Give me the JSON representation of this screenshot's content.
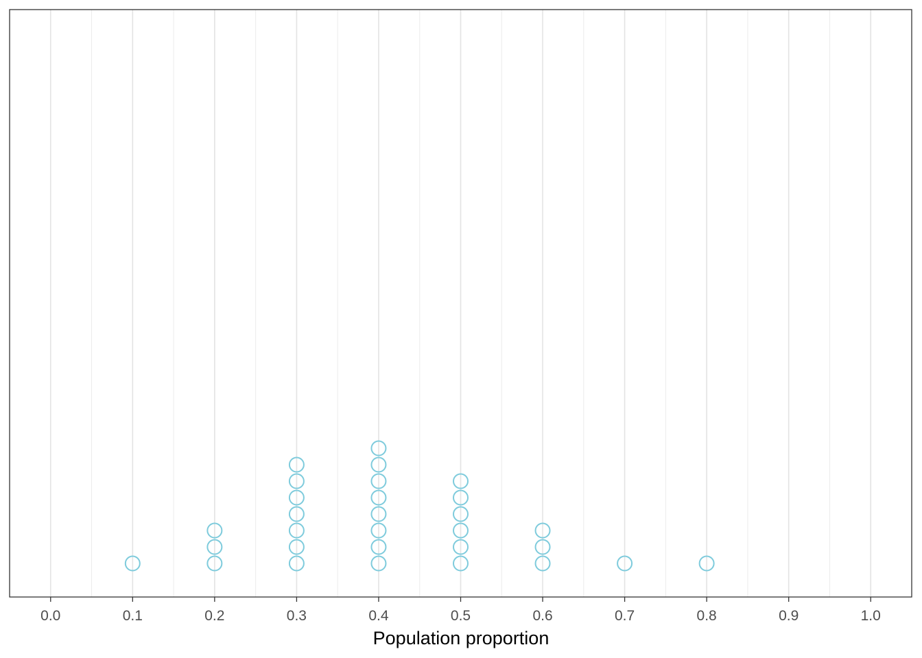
{
  "chart_data": {
    "type": "scatter",
    "subtype": "dotplot",
    "title": "",
    "xlabel": "Population proportion",
    "ylabel": "",
    "xlim": [
      -0.05,
      1.05
    ],
    "x_ticks": [
      "0.0",
      "0.1",
      "0.2",
      "0.3",
      "0.4",
      "0.5",
      "0.6",
      "0.7",
      "0.8",
      "0.9",
      "1.0"
    ],
    "x_tick_values": [
      0.0,
      0.1,
      0.2,
      0.3,
      0.4,
      0.5,
      0.6,
      0.7,
      0.8,
      0.9,
      1.0
    ],
    "grid": true,
    "grid_axis": "x",
    "y_axis_shown": false,
    "marker": "open-circle",
    "color": "#7ecbdc",
    "x": [
      0.1,
      0.2,
      0.3,
      0.4,
      0.5,
      0.6,
      0.7,
      0.8
    ],
    "counts": [
      1,
      3,
      7,
      8,
      6,
      3,
      1,
      1
    ]
  }
}
